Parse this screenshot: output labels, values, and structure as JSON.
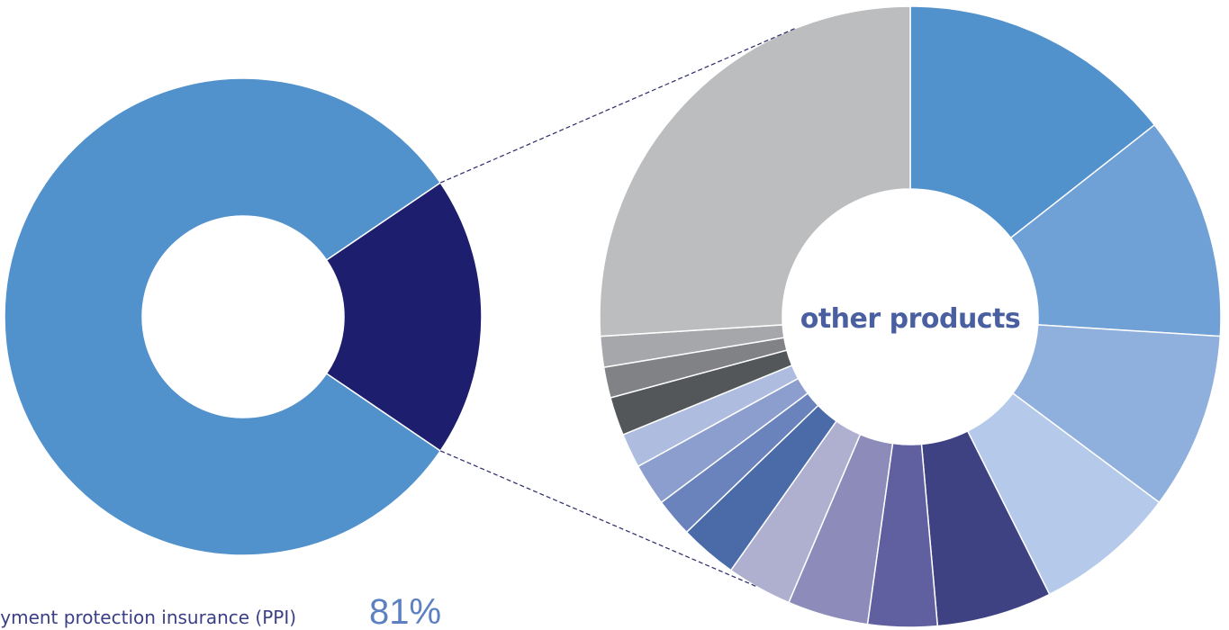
{
  "chart_data": [
    {
      "type": "pie",
      "donut": true,
      "slices": [
        {
          "label": "payment protection insurance (PPI)",
          "value": 81,
          "color": "#5191cc"
        },
        {
          "label": "other products",
          "value": 19,
          "color": "#1e1e6e"
        }
      ],
      "annotation": {
        "label_text": "ayment protection insurance (PPI)",
        "value_text": "81%"
      }
    },
    {
      "type": "pie",
      "donut": true,
      "center_label": "other products",
      "slices": [
        {
          "value": 14.4,
          "color": "#5191cc"
        },
        {
          "value": 11.6,
          "color": "#6fa0d6"
        },
        {
          "value": 9.2,
          "color": "#8fb0dd"
        },
        {
          "value": 7.4,
          "color": "#b5caea"
        },
        {
          "value": 6.0,
          "color": "#3e4182"
        },
        {
          "value": 3.6,
          "color": "#6060a0"
        },
        {
          "value": 4.2,
          "color": "#8c8bba"
        },
        {
          "value": 3.4,
          "color": "#afafd0"
        },
        {
          "value": 3.0,
          "color": "#4b6aa8"
        },
        {
          "value": 2.0,
          "color": "#6a83bd"
        },
        {
          "value": 2.2,
          "color": "#8c9ecd"
        },
        {
          "value": 1.8,
          "color": "#aebcdf"
        },
        {
          "value": 2.0,
          "color": "#545759"
        },
        {
          "value": 1.6,
          "color": "#808285"
        },
        {
          "value": 1.6,
          "color": "#a5a7aa"
        },
        {
          "value": 26.0,
          "color": "#bcbdbf"
        }
      ]
    }
  ]
}
